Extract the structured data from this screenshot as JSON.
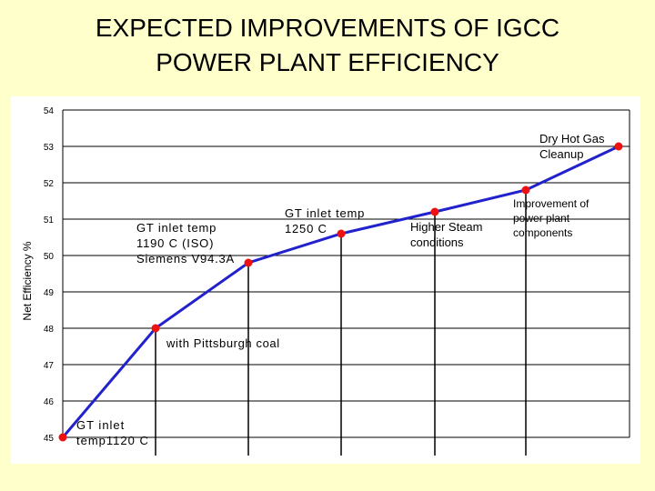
{
  "title": {
    "line1": "EXPECTED IMPROVEMENTS OF IGCC",
    "line2": "POWER PLANT EFFICIENCY"
  },
  "chart_data": {
    "type": "line",
    "title": "EXPECTED IMPROVEMENTS OF IGCC POWER PLANT EFFICIENCY",
    "ylabel": "Net Efficiency %",
    "xlabel": "",
    "ylim": [
      45,
      54
    ],
    "yticks": [
      "54",
      "53",
      "52",
      "51",
      "50",
      "49",
      "48",
      "47",
      "46",
      "45"
    ],
    "grid": true,
    "series": [
      {
        "color": "#2222cc",
        "marker_color": "#ee1111",
        "values": [
          45.0,
          48.0,
          49.8,
          50.6,
          51.2,
          51.8,
          53.0
        ]
      }
    ],
    "annotations": [
      {
        "lines": [
          "GT inlet",
          "temp1120 C"
        ],
        "superscript": "0"
      },
      {
        "lines": [
          "with Pittsburgh coal"
        ]
      },
      {
        "lines": [
          "GT inlet temp",
          "1190 C (ISO)",
          "Siemens V94.3A"
        ],
        "superscript": "0"
      },
      {
        "lines": [
          "GT inlet temp",
          "1250 C"
        ],
        "superscript": "0"
      },
      {
        "lines": [
          "Higher Steam",
          "conditions"
        ]
      },
      {
        "lines": [
          "Improvement of",
          "power plant",
          "components"
        ]
      },
      {
        "lines": [
          "Dry Hot Gas",
          "Cleanup"
        ]
      }
    ]
  }
}
